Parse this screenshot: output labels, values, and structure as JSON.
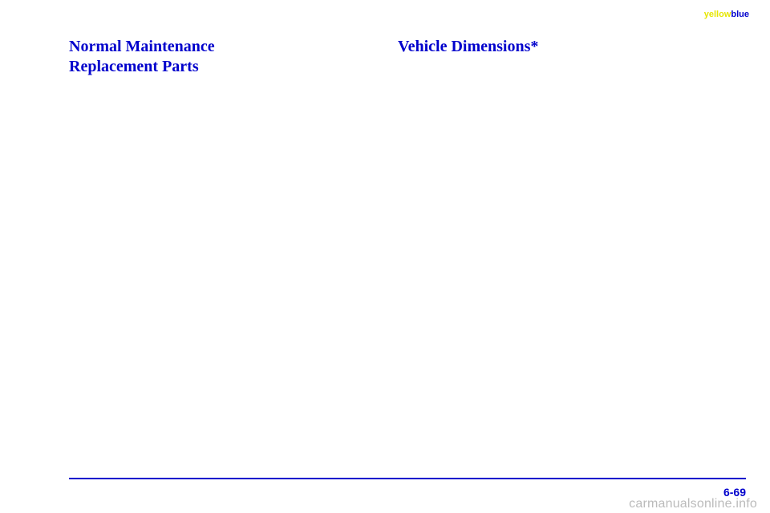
{
  "topLabel": {
    "yellow": "yellow",
    "blue": "blue"
  },
  "leftHeading": {
    "line1": "Normal Maintenance",
    "line2": "Replacement Parts"
  },
  "rightHeading": {
    "text": "Vehicle Dimensions*"
  },
  "pageNumber": "6-69",
  "watermark": "carmanualsonline.info",
  "colors": {
    "headingBlue": "#0000cc",
    "labelYellow": "#e6e600",
    "watermarkGray": "#bbbbbb",
    "background": "#ffffff"
  }
}
